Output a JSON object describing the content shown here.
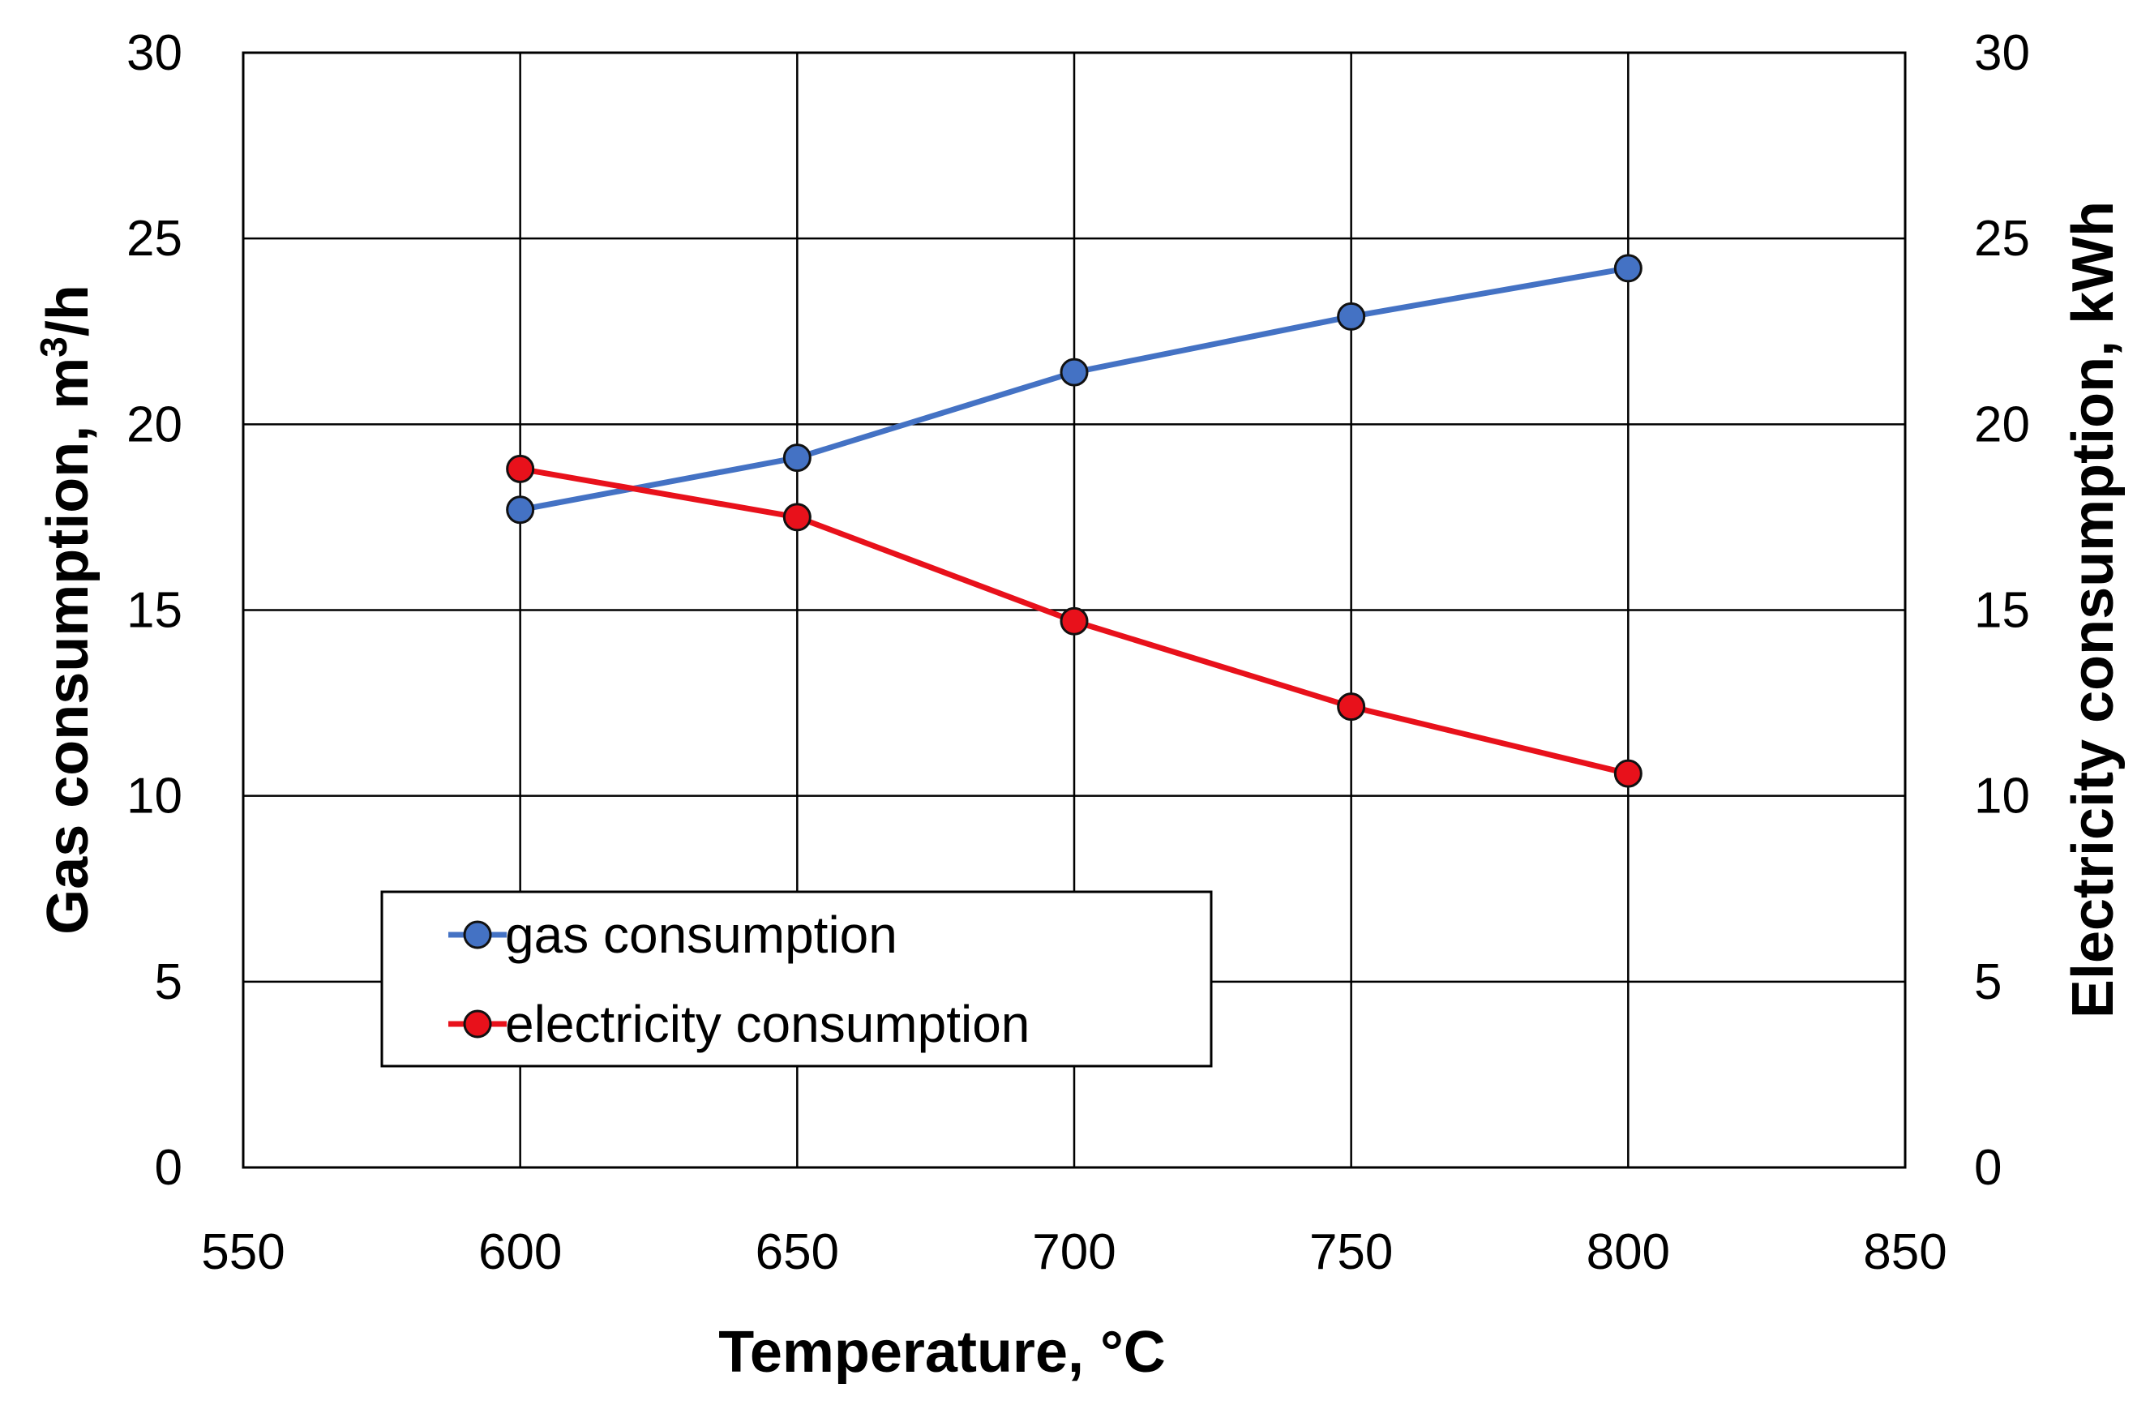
{
  "chart_data": {
    "type": "line",
    "title": "",
    "x": [
      600,
      650,
      700,
      750,
      800
    ],
    "xlim": [
      550,
      850
    ],
    "xticks": [
      550,
      600,
      650,
      700,
      750,
      800,
      850
    ],
    "xlabel": "Temperature, °C",
    "ylabel_left_prefix": "Gas consumption, m",
    "ylabel_left_sup": "3",
    "ylabel_left_suffix": "/h",
    "ylabel_right": "Electricity consumption, kWh",
    "ylim_left": [
      0,
      30
    ],
    "ylim_right": [
      0,
      30
    ],
    "yticks": [
      0,
      5,
      10,
      15,
      20,
      25,
      30
    ],
    "grid": true,
    "legend_position": "lower-left",
    "series": [
      {
        "name": "gas consumption",
        "axis": "left",
        "color": "#4472C4",
        "values": [
          17.7,
          19.1,
          21.4,
          22.9,
          24.2
        ]
      },
      {
        "name": "electricity consumption",
        "axis": "right",
        "color": "#E8111B",
        "values": [
          18.8,
          17.5,
          14.7,
          12.4,
          10.6
        ]
      }
    ]
  }
}
